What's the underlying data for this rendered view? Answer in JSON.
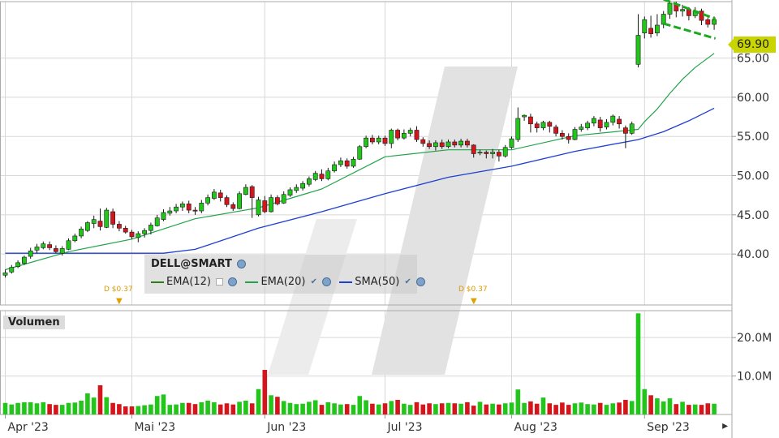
{
  "chart_data": {
    "type": "candlestick",
    "symbol_label": "DELL@SMART",
    "price_panel": {
      "last_price": "69.90",
      "ylim": [
        33.5,
        72.2
      ],
      "y_ticks": [
        "40.00",
        "45.00",
        "50.00",
        "55.00",
        "60.00",
        "65.00"
      ],
      "candles": [
        [
          37.3,
          37.6,
          37.0,
          38.0
        ],
        [
          37.7,
          38.3,
          37.5,
          38.6
        ],
        [
          38.4,
          38.9,
          38.2,
          39.2
        ],
        [
          38.8,
          39.6,
          38.6,
          39.8
        ],
        [
          39.7,
          40.4,
          39.4,
          40.8
        ],
        [
          40.5,
          40.9,
          40.1,
          41.3
        ],
        [
          40.8,
          41.3,
          40.6,
          41.6
        ],
        [
          41.2,
          40.8,
          40.5,
          41.6
        ],
        [
          40.7,
          40.3,
          40.1,
          41.1
        ],
        [
          40.1,
          40.7,
          39.8,
          41.0
        ],
        [
          40.6,
          41.7,
          40.5,
          42.0
        ],
        [
          41.7,
          42.3,
          41.5,
          42.6
        ],
        [
          42.3,
          43.2,
          42.0,
          43.5
        ],
        [
          43.0,
          44.0,
          42.8,
          44.2
        ],
        [
          43.9,
          44.4,
          43.3,
          44.9
        ],
        [
          44.2,
          43.5,
          43.0,
          45.8
        ],
        [
          43.4,
          45.6,
          43.3,
          45.9
        ],
        [
          45.4,
          43.8,
          43.3,
          45.8
        ],
        [
          43.8,
          43.3,
          42.9,
          44.2
        ],
        [
          43.3,
          42.8,
          42.6,
          43.6
        ],
        [
          42.8,
          42.2,
          41.9,
          43.1
        ],
        [
          42.1,
          42.6,
          41.5,
          42.9
        ],
        [
          42.6,
          43.0,
          42.1,
          43.3
        ],
        [
          43.0,
          43.7,
          42.5,
          44.0
        ],
        [
          43.6,
          44.6,
          43.5,
          45.0
        ],
        [
          44.4,
          45.3,
          44.2,
          45.7
        ],
        [
          45.2,
          45.5,
          44.9,
          46.0
        ],
        [
          45.5,
          46.0,
          45.2,
          46.4
        ],
        [
          46.0,
          46.4,
          45.5,
          46.7
        ],
        [
          46.4,
          45.6,
          45.2,
          46.8
        ],
        [
          45.6,
          45.5,
          45.0,
          46.0
        ],
        [
          45.5,
          46.5,
          45.2,
          46.9
        ],
        [
          46.5,
          47.2,
          46.2,
          47.6
        ],
        [
          47.1,
          47.9,
          46.9,
          48.3
        ],
        [
          47.8,
          47.2,
          46.7,
          48.2
        ],
        [
          47.2,
          46.3,
          46.0,
          47.5
        ],
        [
          46.3,
          45.8,
          45.5,
          46.6
        ],
        [
          45.8,
          47.7,
          45.7,
          48.0
        ],
        [
          47.6,
          48.5,
          47.5,
          48.9
        ],
        [
          48.6,
          47.2,
          44.6,
          48.8
        ],
        [
          45.0,
          46.9,
          44.8,
          47.3
        ],
        [
          46.8,
          45.4,
          45.2,
          47.4
        ],
        [
          45.4,
          47.2,
          45.3,
          47.6
        ],
        [
          47.2,
          46.4,
          46.2,
          47.5
        ],
        [
          46.5,
          47.6,
          46.4,
          48.0
        ],
        [
          47.5,
          48.2,
          47.3,
          48.5
        ],
        [
          48.1,
          48.5,
          47.8,
          48.9
        ],
        [
          48.4,
          49.0,
          48.1,
          49.3
        ],
        [
          48.9,
          49.6,
          48.6,
          49.9
        ],
        [
          49.5,
          50.3,
          49.3,
          50.6
        ],
        [
          50.2,
          49.6,
          49.3,
          50.8
        ],
        [
          49.6,
          50.6,
          49.4,
          51.0
        ],
        [
          50.6,
          51.4,
          50.4,
          51.8
        ],
        [
          51.4,
          51.9,
          51.1,
          52.3
        ],
        [
          51.9,
          51.2,
          50.9,
          52.2
        ],
        [
          51.2,
          52.1,
          51.0,
          52.4
        ],
        [
          52.1,
          53.7,
          52.0,
          53.9
        ],
        [
          53.7,
          54.8,
          53.5,
          55.1
        ],
        [
          54.8,
          54.3,
          54.0,
          55.2
        ],
        [
          54.3,
          54.8,
          54.0,
          55.1
        ],
        [
          54.8,
          54.1,
          53.8,
          55.1
        ],
        [
          54.1,
          55.8,
          53.5,
          56.0
        ],
        [
          55.8,
          54.8,
          54.5,
          56.0
        ],
        [
          54.8,
          55.4,
          54.6,
          55.9
        ],
        [
          55.4,
          55.8,
          55.0,
          56.1
        ],
        [
          55.8,
          54.6,
          54.3,
          56.3
        ],
        [
          54.6,
          54.1,
          53.7,
          54.9
        ],
        [
          54.1,
          53.7,
          53.4,
          54.5
        ],
        [
          53.7,
          54.2,
          53.2,
          54.5
        ],
        [
          54.2,
          53.7,
          53.4,
          54.6
        ],
        [
          53.7,
          54.3,
          53.5,
          54.6
        ],
        [
          54.3,
          53.9,
          53.6,
          54.6
        ],
        [
          53.9,
          54.4,
          53.6,
          54.7
        ],
        [
          54.4,
          53.9,
          53.6,
          54.7
        ],
        [
          53.9,
          52.8,
          52.3,
          54.0
        ],
        [
          52.9,
          53.0,
          52.6,
          53.3
        ],
        [
          53.0,
          52.8,
          52.2,
          53.2
        ],
        [
          52.8,
          53.0,
          52.2,
          53.4
        ],
        [
          53.0,
          52.5,
          51.8,
          53.3
        ],
        [
          52.5,
          53.6,
          52.3,
          53.9
        ],
        [
          53.6,
          54.7,
          53.4,
          55.0
        ],
        [
          54.6,
          57.3,
          54.3,
          58.7
        ],
        [
          57.5,
          57.7,
          57.0,
          57.8
        ],
        [
          57.5,
          56.6,
          55.5,
          57.9
        ],
        [
          56.6,
          56.1,
          55.5,
          56.9
        ],
        [
          56.1,
          56.8,
          55.8,
          57.0
        ],
        [
          56.8,
          56.3,
          55.5,
          57.0
        ],
        [
          56.2,
          55.4,
          55.0,
          56.5
        ],
        [
          55.4,
          55.0,
          54.6,
          55.8
        ],
        [
          55.0,
          54.6,
          54.1,
          55.4
        ],
        [
          54.6,
          55.9,
          54.5,
          56.2
        ],
        [
          55.9,
          56.2,
          55.6,
          56.6
        ],
        [
          56.1,
          56.7,
          55.8,
          57.0
        ],
        [
          56.7,
          57.3,
          56.3,
          57.6
        ],
        [
          57.1,
          56.1,
          55.6,
          57.5
        ],
        [
          56.2,
          56.8,
          55.9,
          57.2
        ],
        [
          56.8,
          57.6,
          56.4,
          57.8
        ],
        [
          57.2,
          56.6,
          56.0,
          57.6
        ],
        [
          56.1,
          55.4,
          53.5,
          56.4
        ],
        [
          55.4,
          56.6,
          55.2,
          56.9
        ],
        [
          64.2,
          67.9,
          63.8,
          70.6
        ],
        [
          68.2,
          69.9,
          67.5,
          70.3
        ],
        [
          68.8,
          68.1,
          67.6,
          70.4
        ],
        [
          68.2,
          69.2,
          67.8,
          70.6
        ],
        [
          69.3,
          70.6,
          68.8,
          71.0
        ],
        [
          70.6,
          72.0,
          70.0,
          72.2
        ],
        [
          71.9,
          71.0,
          70.2,
          72.4
        ],
        [
          71.0,
          71.2,
          70.3,
          71.8
        ],
        [
          71.2,
          70.4,
          69.8,
          71.5
        ],
        [
          70.4,
          71.0,
          70.1,
          71.5
        ],
        [
          71.0,
          69.8,
          69.2,
          71.3
        ],
        [
          69.9,
          69.3,
          68.9,
          70.2
        ],
        [
          69.3,
          69.9,
          68.6,
          70.3
        ]
      ],
      "ema12": [
        [
          0,
          38.0
        ],
        [
          10,
          40.6
        ],
        [
          20,
          42.6
        ],
        [
          30,
          45.5
        ],
        [
          40,
          46.6
        ],
        [
          50,
          49.5
        ],
        [
          60,
          53.7
        ],
        [
          70,
          53.9
        ],
        [
          80,
          53.3
        ],
        [
          90,
          55.8
        ],
        [
          100,
          56.5
        ],
        [
          101,
          58.0
        ],
        [
          103,
          60.6
        ],
        [
          105,
          62.8
        ],
        [
          107,
          64.3
        ],
        [
          109,
          65.0
        ],
        [
          112,
          65.7
        ]
      ],
      "ema20": [
        [
          0,
          38.0
        ],
        [
          10,
          40.3
        ],
        [
          20,
          41.9
        ],
        [
          30,
          44.5
        ],
        [
          40,
          45.9
        ],
        [
          50,
          48.3
        ],
        [
          60,
          52.4
        ],
        [
          70,
          53.3
        ],
        [
          80,
          53.3
        ],
        [
          90,
          55.1
        ],
        [
          100,
          55.9
        ],
        [
          101,
          56.9
        ],
        [
          103,
          58.5
        ],
        [
          105,
          60.5
        ],
        [
          107,
          62.3
        ],
        [
          109,
          63.8
        ],
        [
          112,
          65.6
        ]
      ],
      "sma50": [
        [
          0,
          40.1
        ],
        [
          15,
          40.1
        ],
        [
          25,
          40.1
        ],
        [
          30,
          40.6
        ],
        [
          40,
          43.3
        ],
        [
          50,
          45.4
        ],
        [
          60,
          47.7
        ],
        [
          70,
          49.8
        ],
        [
          80,
          51.2
        ],
        [
          90,
          53.1
        ],
        [
          100,
          54.6
        ],
        [
          104,
          55.6
        ],
        [
          108,
          57.0
        ],
        [
          112,
          58.6
        ]
      ],
      "channel_upper": [
        [
          104.0,
          72.5
        ],
        [
          112.2,
          70.0
        ]
      ],
      "channel_lower": [
        [
          104.0,
          69.4
        ],
        [
          112.2,
          67.5
        ]
      ]
    },
    "legend": [
      {
        "name": "EMA(12)",
        "color": "#2e7d1a"
      },
      {
        "name": "EMA(20)",
        "color": "#22a34a"
      },
      {
        "name": "SMA(50)",
        "color": "#1e3fd0"
      }
    ],
    "dividends": [
      {
        "index": 19,
        "label": "D $0.37"
      },
      {
        "index": 76,
        "label": "D $0.37"
      }
    ],
    "volume_panel": {
      "title": "Volumen",
      "ylim": [
        0,
        27
      ],
      "y_ticks": [
        "10.0M",
        "20.0M"
      ],
      "y_tick_values": [
        10,
        20
      ],
      "values": [
        3.0,
        2.6,
        3.0,
        3.2,
        3.2,
        2.9,
        3.2,
        2.7,
        2.5,
        2.5,
        3.0,
        3.1,
        3.6,
        5.5,
        4.4,
        7.6,
        4.5,
        3.0,
        2.7,
        2.1,
        2.1,
        2.2,
        2.4,
        2.6,
        4.8,
        5.2,
        2.5,
        2.6,
        3.0,
        3.0,
        2.7,
        3.2,
        3.6,
        3.2,
        2.6,
        2.9,
        2.6,
        3.3,
        3.6,
        2.9,
        6.6,
        11.6,
        5.0,
        4.6,
        3.5,
        3.0,
        2.7,
        2.8,
        3.3,
        3.7,
        2.5,
        3.2,
        2.9,
        2.6,
        2.7,
        2.5,
        4.8,
        3.7,
        2.8,
        2.6,
        2.9,
        3.5,
        3.8,
        2.8,
        2.5,
        3.2,
        2.6,
        2.9,
        2.7,
        2.9,
        3.0,
        2.9,
        2.8,
        3.2,
        2.3,
        3.3,
        2.6,
        2.8,
        2.6,
        2.9,
        3.1,
        6.5,
        3.0,
        3.4,
        2.8,
        4.4,
        2.9,
        2.5,
        3.1,
        2.5,
        2.9,
        3.1,
        2.7,
        2.6,
        3.0,
        2.5,
        2.9,
        3.1,
        3.8,
        3.5,
        26.3,
        6.6,
        5.0,
        4.2,
        3.4,
        4.2,
        2.7,
        3.3,
        2.5,
        2.6,
        2.5,
        2.9,
        2.8
      ]
    },
    "x_labels": [
      "Apr '23",
      "Mai '23",
      "Jun '23",
      "Jul '23",
      "Aug '23",
      "Sep '23"
    ],
    "x_label_indices": [
      0.5,
      20.5,
      41.5,
      60.5,
      80.5,
      101.5
    ],
    "colors": {
      "up": "#22c51a",
      "down": "#d4151c",
      "grid": "#d8d8d8",
      "watermark": "#e2e2e2",
      "price_tag": "#c9d400",
      "channel": "#1ea820"
    }
  }
}
